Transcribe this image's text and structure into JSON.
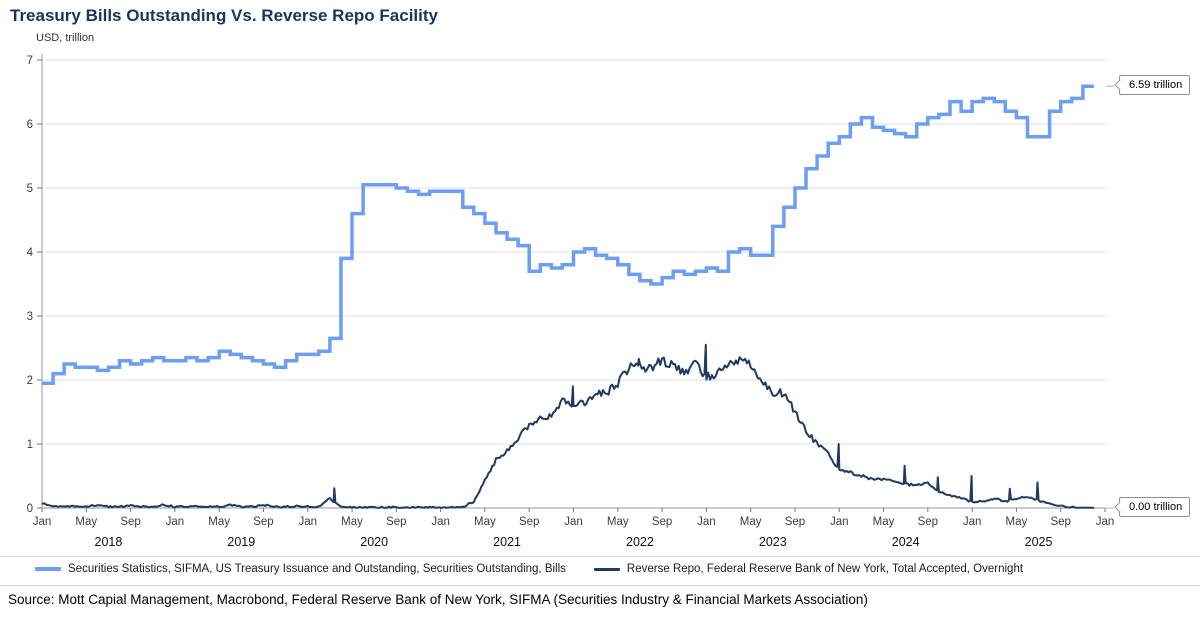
{
  "header": {
    "title": "Treasury Bills Outstanding Vs. Reverse Repo Facility",
    "unit_label": "USD, trillion"
  },
  "annotations": {
    "bills_latest": "6.59 trillion",
    "rrp_latest": "0.00 trillion"
  },
  "legend": [
    {
      "label": "Securities Statistics, SIFMA, US Treasury Issuance and Outstanding, Securities Outstanding, Bills",
      "color": "#6D9EF1"
    },
    {
      "label": "Reverse Repo, Federal Reserve Bank of New York, Total Accepted, Overnight",
      "color": "#1E3A5F"
    }
  ],
  "source": "Source: Mott Capial Management, Macrobond, Federal Reserve Bank of New York, SIFMA (Securities Industry & Financial Markets Association)",
  "colors": {
    "title": "#17365d",
    "grid": "#dcdfe3",
    "axis": "#8f959c",
    "tick": "#777777",
    "bills_line": "#6D9EF1",
    "rrp_line": "#1E3A5F"
  },
  "chart_data": {
    "type": "line",
    "title": "Treasury Bills Outstanding Vs. Reverse Repo Facility",
    "ylabel": "USD, trillion",
    "ylim": [
      0,
      7
    ],
    "y_ticks": [
      0,
      1,
      2,
      3,
      4,
      5,
      6,
      7
    ],
    "grid": "horizontal",
    "legend_position": "bottom",
    "x_start": "2018-01",
    "x_end": "2026-01",
    "x_total_months": 96,
    "x_month_ticks": [
      {
        "m": 0,
        "label": "Jan"
      },
      {
        "m": 4,
        "label": "May"
      },
      {
        "m": 8,
        "label": "Sep"
      },
      {
        "m": 12,
        "label": "Jan"
      },
      {
        "m": 16,
        "label": "May"
      },
      {
        "m": 20,
        "label": "Sep"
      },
      {
        "m": 24,
        "label": "Jan"
      },
      {
        "m": 28,
        "label": "May"
      },
      {
        "m": 32,
        "label": "Sep"
      },
      {
        "m": 36,
        "label": "Jan"
      },
      {
        "m": 40,
        "label": "May"
      },
      {
        "m": 44,
        "label": "Sep"
      },
      {
        "m": 48,
        "label": "Jan"
      },
      {
        "m": 52,
        "label": "May"
      },
      {
        "m": 56,
        "label": "Sep"
      },
      {
        "m": 60,
        "label": "Jan"
      },
      {
        "m": 64,
        "label": "May"
      },
      {
        "m": 68,
        "label": "Sep"
      },
      {
        "m": 72,
        "label": "Jan"
      },
      {
        "m": 76,
        "label": "May"
      },
      {
        "m": 80,
        "label": "Sep"
      },
      {
        "m": 84,
        "label": "Jan"
      },
      {
        "m": 88,
        "label": "May"
      },
      {
        "m": 92,
        "label": "Sep"
      },
      {
        "m": 96,
        "label": "Jan"
      }
    ],
    "x_year_labels": [
      {
        "m": 6,
        "label": "2018"
      },
      {
        "m": 18,
        "label": "2019"
      },
      {
        "m": 30,
        "label": "2020"
      },
      {
        "m": 42,
        "label": "2021"
      },
      {
        "m": 54,
        "label": "2022"
      },
      {
        "m": 66,
        "label": "2023"
      },
      {
        "m": 78,
        "label": "2024"
      },
      {
        "m": 90,
        "label": "2025"
      }
    ],
    "series": [
      {
        "name": "Securities Statistics, SIFMA, US Treasury Issuance and Outstanding, Securities Outstanding, Bills",
        "color": "#6D9EF1",
        "style": "step",
        "stroke_width": 3.5,
        "unit": "USD trillion",
        "latest_label": "6.59 trillion",
        "monthly_values": [
          1.95,
          2.1,
          2.25,
          2.2,
          2.2,
          2.15,
          2.2,
          2.3,
          2.25,
          2.3,
          2.35,
          2.3,
          2.3,
          2.35,
          2.3,
          2.35,
          2.45,
          2.4,
          2.35,
          2.3,
          2.25,
          2.2,
          2.3,
          2.4,
          2.4,
          2.45,
          2.65,
          3.9,
          4.6,
          5.05,
          5.05,
          5.05,
          5.0,
          4.95,
          4.9,
          4.95,
          4.95,
          4.95,
          4.7,
          4.6,
          4.45,
          4.3,
          4.2,
          4.1,
          3.7,
          3.8,
          3.75,
          3.8,
          4.0,
          4.05,
          3.95,
          3.9,
          3.8,
          3.65,
          3.55,
          3.5,
          3.6,
          3.7,
          3.65,
          3.7,
          3.75,
          3.7,
          4.0,
          4.05,
          3.95,
          3.95,
          4.4,
          4.7,
          5.0,
          5.3,
          5.5,
          5.7,
          5.8,
          6.0,
          6.1,
          5.95,
          5.9,
          5.85,
          5.8,
          6.0,
          6.1,
          6.15,
          6.35,
          6.2,
          6.35,
          6.4,
          6.35,
          6.2,
          6.1,
          5.8,
          5.8,
          6.2,
          6.35,
          6.4,
          6.59
        ]
      },
      {
        "name": "Reverse Repo, Federal Reserve Bank of New York, Total Accepted, Overnight",
        "color": "#1E3A5F",
        "style": "noisy-line",
        "stroke_width": 2,
        "unit": "USD trillion",
        "latest_label": "0.00 trillion",
        "monthly_values": [
          0.07,
          0.03,
          0.03,
          0.02,
          0.02,
          0.05,
          0.02,
          0.02,
          0.04,
          0.02,
          0.02,
          0.05,
          0.02,
          0.02,
          0.03,
          0.02,
          0.02,
          0.05,
          0.02,
          0.02,
          0.05,
          0.02,
          0.02,
          0.03,
          0.02,
          0.02,
          0.15,
          0.01,
          0.01,
          0.01,
          0.01,
          0.01,
          0.01,
          0.01,
          0.01,
          0.01,
          0.01,
          0.01,
          0.02,
          0.1,
          0.45,
          0.75,
          0.9,
          1.1,
          1.3,
          1.4,
          1.45,
          1.7,
          1.6,
          1.65,
          1.8,
          1.8,
          1.95,
          2.2,
          2.2,
          2.2,
          2.3,
          2.25,
          2.1,
          2.25,
          2.05,
          2.1,
          2.3,
          2.3,
          2.25,
          2.0,
          1.8,
          1.8,
          1.5,
          1.2,
          1.0,
          0.85,
          0.6,
          0.55,
          0.5,
          0.45,
          0.45,
          0.4,
          0.38,
          0.35,
          0.38,
          0.25,
          0.2,
          0.15,
          0.1,
          0.1,
          0.15,
          0.1,
          0.15,
          0.18,
          0.12,
          0.06,
          0.03,
          0.01,
          0.0
        ],
        "spikes": [
          {
            "m": 26.4,
            "v": 0.31
          },
          {
            "m": 47.95,
            "v": 1.9
          },
          {
            "m": 53.9,
            "v": 2.33
          },
          {
            "m": 59.95,
            "v": 2.55
          },
          {
            "m": 71.95,
            "v": 1.0
          },
          {
            "m": 77.9,
            "v": 0.66
          },
          {
            "m": 80.9,
            "v": 0.48
          },
          {
            "m": 83.95,
            "v": 0.5
          },
          {
            "m": 87.4,
            "v": 0.3
          },
          {
            "m": 89.9,
            "v": 0.4
          }
        ]
      }
    ]
  }
}
